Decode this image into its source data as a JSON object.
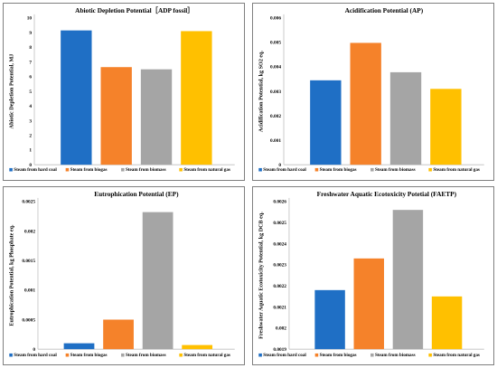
{
  "chart_data": [
    {
      "type": "bar",
      "title": "Abiotic Depletion Potential［ADP fossil］",
      "ylabel": "Abiotic Depletion Potential, MJ",
      "xlabel": "",
      "categories": [
        "Steam from hard coal",
        "Steam from biogas",
        "Steam from biomass",
        "Steam from natural gas"
      ],
      "values": [
        9.15,
        6.65,
        6.5,
        9.1
      ],
      "ylim": [
        0,
        10
      ],
      "yticks": [
        "0",
        "1",
        "2",
        "3",
        "4",
        "5",
        "6",
        "7",
        "8",
        "9",
        "10"
      ],
      "grid": false,
      "legend_position": "bottom"
    },
    {
      "type": "bar",
      "title": "Acidification Potential (AP)",
      "ylabel": "Acidification Potential, kg SO2 eq.",
      "xlabel": "",
      "categories": [
        "Steam from hard coal",
        "Steam from biogas",
        "Steam from biomass",
        "Steam from natural gas"
      ],
      "values": [
        0.00345,
        0.00498,
        0.00378,
        0.0031
      ],
      "ylim": [
        0,
        0.006
      ],
      "yticks": [
        "0",
        "0.001",
        "0.002",
        "0.003",
        "0.004",
        "0.005",
        "0.006"
      ],
      "grid": false,
      "legend_position": "bottom"
    },
    {
      "type": "bar",
      "title": "Eutrophication Potential (EP)",
      "ylabel": "Eutrophication Potential, kg Phosphate eq.",
      "xlabel": "",
      "categories": [
        "Steam from hard coal",
        "Steam from biogas",
        "Steam from biomass",
        "Steam from natural gas"
      ],
      "values": [
        0.0001,
        0.0005,
        0.00232,
        7e-05
      ],
      "ylim": [
        0,
        0.0025
      ],
      "yticks": [
        "0",
        "0.0005",
        "0.001",
        "0.0015",
        "0.002",
        "0.0025"
      ],
      "grid": false,
      "legend_position": "bottom"
    },
    {
      "type": "bar",
      "title": "Freshwater Aquatic Ecotoxicity Potetial (FAETP)",
      "ylabel": "Freshwater Aquatic Ecotoxicity Potential, kg DCB eq.",
      "xlabel": "",
      "categories": [
        "Steam from hard coal",
        "Steam from biogas",
        "Steam from biomass",
        "Steam from natural gas"
      ],
      "values": [
        0.00218,
        0.00233,
        0.00256,
        0.00215
      ],
      "ylim": [
        0.0019,
        0.0026
      ],
      "yticks": [
        "0.0019",
        "0.002",
        "0.0021",
        "0.0022",
        "0.0023",
        "0.0024",
        "0.0025",
        "0.0026"
      ],
      "grid": false,
      "legend_position": "bottom"
    }
  ],
  "colors": [
    "#1f6fc5",
    "#f5822a",
    "#a5a5a5",
    "#ffc000"
  ]
}
